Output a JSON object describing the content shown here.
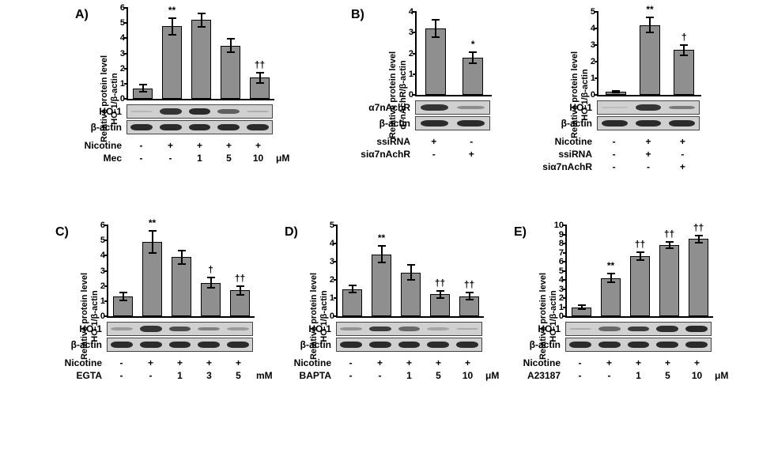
{
  "global": {
    "bar_color": "#8f8f8f",
    "bar_border": "#000000",
    "axis_color": "#000000",
    "background": "#ffffff",
    "font_family": "Arial",
    "label_fontsize": 11,
    "panel_label_fontsize": 16
  },
  "panels": {
    "A": {
      "label": "A)",
      "chart": {
        "type": "bar",
        "ylabel_line1": "Relative protein level",
        "ylabel_line2": "HO-1/β-actin",
        "ylim": [
          0,
          6
        ],
        "ytick_step": 1,
        "bar_width": 0.65,
        "values": [
          0.7,
          4.8,
          5.2,
          3.5,
          1.4
        ],
        "errors": [
          0.3,
          0.6,
          0.5,
          0.5,
          0.4
        ],
        "sig": [
          "",
          "**",
          "",
          "",
          "††"
        ]
      },
      "blots": [
        {
          "label": "HO-1",
          "intensities": [
            0.1,
            0.85,
            0.9,
            0.6,
            0.15
          ]
        },
        {
          "label": "β-actin",
          "intensities": [
            0.9,
            0.9,
            0.9,
            0.9,
            0.9
          ]
        }
      ],
      "conditions": [
        {
          "label": "Nicotine",
          "cells": [
            "-",
            "+",
            "+",
            "+",
            "+"
          ]
        },
        {
          "label": "Mec",
          "cells": [
            "-",
            "-",
            "1",
            "5",
            "10"
          ],
          "unit": "μM"
        }
      ]
    },
    "B1": {
      "chart": {
        "type": "bar",
        "ylabel_line1": "Relative protein level",
        "ylabel_line2": "α7nAchR/β-actin",
        "ylim": [
          0,
          4
        ],
        "ytick_step": 1,
        "bar_width": 0.55,
        "values": [
          3.2,
          1.8
        ],
        "errors": [
          0.45,
          0.3
        ],
        "sig": [
          "",
          "*"
        ]
      },
      "blots": [
        {
          "label": "α7nAchR",
          "intensities": [
            0.85,
            0.35
          ]
        },
        {
          "label": "β-actin",
          "intensities": [
            0.9,
            0.9
          ]
        }
      ],
      "conditions": [
        {
          "label": "ssiRNA",
          "cells": [
            "+",
            "-"
          ]
        },
        {
          "label": "siα7nAchR",
          "cells": [
            "-",
            "+"
          ]
        }
      ]
    },
    "B2": {
      "label": "B)",
      "chart": {
        "type": "bar",
        "ylabel_line1": "Relative protein level",
        "ylabel_line2": "HO-1/β-actin",
        "ylim": [
          0,
          5
        ],
        "ytick_step": 1,
        "bar_width": 0.6,
        "values": [
          0.2,
          4.2,
          2.7
        ],
        "errors": [
          0.1,
          0.5,
          0.35
        ],
        "sig": [
          "",
          "**",
          "†"
        ]
      },
      "blots": [
        {
          "label": "HO-1",
          "intensities": [
            0.05,
            0.85,
            0.45
          ]
        },
        {
          "label": "β-actin",
          "intensities": [
            0.9,
            0.9,
            0.9
          ]
        }
      ],
      "conditions": [
        {
          "label": "Nicotine",
          "cells": [
            "-",
            "+",
            "+"
          ]
        },
        {
          "label": "ssiRNA",
          "cells": [
            "-",
            "+",
            "-"
          ]
        },
        {
          "label": "siα7nAchR",
          "cells": [
            "-",
            "-",
            "+"
          ]
        }
      ]
    },
    "C": {
      "label": "C)",
      "chart": {
        "type": "bar",
        "ylabel_line1": "Relative protein level",
        "ylabel_line2": "HO-1/β-actin",
        "ylim": [
          0,
          6
        ],
        "ytick_step": 1,
        "bar_width": 0.65,
        "values": [
          1.3,
          4.9,
          3.9,
          2.2,
          1.7
        ],
        "errors": [
          0.3,
          0.8,
          0.5,
          0.4,
          0.35
        ],
        "sig": [
          "",
          "**",
          "",
          "†",
          "††"
        ]
      },
      "blots": [
        {
          "label": "HO-1",
          "intensities": [
            0.25,
            0.85,
            0.7,
            0.4,
            0.25
          ]
        },
        {
          "label": "β-actin",
          "intensities": [
            0.9,
            0.9,
            0.9,
            0.9,
            0.9
          ]
        }
      ],
      "conditions": [
        {
          "label": "Nicotine",
          "cells": [
            "-",
            "+",
            "+",
            "+",
            "+"
          ]
        },
        {
          "label": "EGTA",
          "cells": [
            "-",
            "-",
            "1",
            "3",
            "5"
          ],
          "unit": "mM"
        }
      ]
    },
    "D": {
      "label": "D)",
      "chart": {
        "type": "bar",
        "ylabel_line1": "Relative protein level",
        "ylabel_line2": "HO-1/β-actin",
        "ylim": [
          0,
          5
        ],
        "ytick_step": 1,
        "bar_width": 0.65,
        "values": [
          1.5,
          3.4,
          2.4,
          1.2,
          1.1
        ],
        "errors": [
          0.25,
          0.5,
          0.45,
          0.25,
          0.25
        ],
        "sig": [
          "",
          "**",
          "",
          "††",
          "††"
        ]
      },
      "blots": [
        {
          "label": "HO-1",
          "intensities": [
            0.3,
            0.8,
            0.55,
            0.2,
            0.15
          ]
        },
        {
          "label": "β-actin",
          "intensities": [
            0.9,
            0.9,
            0.9,
            0.9,
            0.9
          ]
        }
      ],
      "conditions": [
        {
          "label": "Nicotine",
          "cells": [
            "-",
            "+",
            "+",
            "+",
            "+"
          ]
        },
        {
          "label": "BAPTA",
          "cells": [
            "-",
            "-",
            "1",
            "5",
            "10"
          ],
          "unit": "μM"
        }
      ]
    },
    "E": {
      "label": "E)",
      "chart": {
        "type": "bar",
        "ylabel_line1": "Relative protein level",
        "ylabel_line2": "HO-1/β-actin",
        "ylim": [
          0,
          10
        ],
        "ytick_step": 1,
        "bar_width": 0.65,
        "values": [
          1.0,
          4.2,
          6.6,
          7.8,
          8.5
        ],
        "errors": [
          0.3,
          0.55,
          0.55,
          0.45,
          0.5
        ],
        "sig": [
          "",
          "**",
          "††",
          "††",
          "††"
        ]
      },
      "blots": [
        {
          "label": "HO-1",
          "intensities": [
            0.15,
            0.55,
            0.8,
            0.88,
            0.92
          ]
        },
        {
          "label": "β-actin",
          "intensities": [
            0.9,
            0.9,
            0.9,
            0.9,
            0.9
          ]
        }
      ],
      "conditions": [
        {
          "label": "Nicotine",
          "cells": [
            "-",
            "+",
            "+",
            "+",
            "+"
          ]
        },
        {
          "label": "A23187",
          "cells": [
            "-",
            "-",
            "1",
            "5",
            "10"
          ],
          "unit": "μM"
        }
      ]
    }
  }
}
